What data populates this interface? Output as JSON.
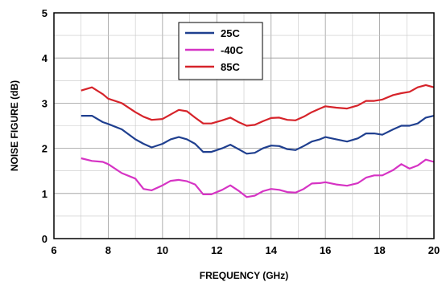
{
  "chart_data": {
    "type": "line",
    "title": "",
    "xlabel": "FREQUENCY (GHz)",
    "ylabel": "NOISE FIGURE (dB)",
    "xlim": [
      6,
      20
    ],
    "ylim": [
      0,
      5
    ],
    "x_ticks": [
      6,
      8,
      10,
      12,
      14,
      16,
      18,
      20
    ],
    "y_ticks": [
      0,
      1,
      2,
      3,
      4,
      5
    ],
    "x_tick_labels": [
      "6",
      "8",
      "10",
      "12",
      "14",
      "16",
      "18",
      "20"
    ],
    "y_tick_labels": [
      "0",
      "1",
      "2",
      "3",
      "4",
      "5"
    ],
    "grid": true,
    "legend_position": "top-center",
    "series": [
      {
        "name": "25C",
        "color": "#1f3f8f",
        "x": [
          7.0,
          7.4,
          7.8,
          8.0,
          8.5,
          9.0,
          9.3,
          9.6,
          10.0,
          10.3,
          10.6,
          10.9,
          11.2,
          11.5,
          11.8,
          12.2,
          12.5,
          12.8,
          13.1,
          13.4,
          13.7,
          14.0,
          14.3,
          14.6,
          14.9,
          15.2,
          15.5,
          15.8,
          16.0,
          16.4,
          16.8,
          17.2,
          17.5,
          17.8,
          18.1,
          18.5,
          18.8,
          19.1,
          19.4,
          19.7,
          20.0
        ],
        "y": [
          2.72,
          2.72,
          2.58,
          2.54,
          2.42,
          2.2,
          2.1,
          2.02,
          2.1,
          2.2,
          2.25,
          2.2,
          2.1,
          1.92,
          1.92,
          2.0,
          2.08,
          1.98,
          1.88,
          1.9,
          2.0,
          2.06,
          2.05,
          1.98,
          1.96,
          2.05,
          2.15,
          2.2,
          2.25,
          2.2,
          2.15,
          2.22,
          2.33,
          2.33,
          2.3,
          2.42,
          2.5,
          2.5,
          2.55,
          2.68,
          2.72
        ]
      },
      {
        "name": "-40C",
        "color": "#d633c4",
        "x": [
          7.0,
          7.4,
          7.8,
          8.0,
          8.5,
          9.0,
          9.3,
          9.6,
          10.0,
          10.3,
          10.6,
          10.9,
          11.2,
          11.5,
          11.8,
          12.2,
          12.5,
          12.8,
          13.1,
          13.4,
          13.7,
          14.0,
          14.3,
          14.6,
          14.9,
          15.2,
          15.5,
          15.8,
          16.0,
          16.4,
          16.8,
          17.2,
          17.5,
          17.8,
          18.1,
          18.5,
          18.8,
          19.1,
          19.4,
          19.7,
          20.0
        ],
        "y": [
          1.78,
          1.72,
          1.7,
          1.65,
          1.45,
          1.33,
          1.1,
          1.07,
          1.18,
          1.28,
          1.3,
          1.27,
          1.2,
          0.98,
          0.98,
          1.08,
          1.18,
          1.06,
          0.92,
          0.95,
          1.05,
          1.1,
          1.08,
          1.03,
          1.02,
          1.1,
          1.22,
          1.23,
          1.25,
          1.2,
          1.17,
          1.23,
          1.35,
          1.4,
          1.4,
          1.52,
          1.65,
          1.55,
          1.62,
          1.75,
          1.7
        ]
      },
      {
        "name": "85C",
        "color": "#d6232a",
        "x": [
          7.0,
          7.4,
          7.8,
          8.0,
          8.5,
          9.0,
          9.3,
          9.6,
          10.0,
          10.3,
          10.6,
          10.9,
          11.2,
          11.5,
          11.8,
          12.2,
          12.5,
          12.8,
          13.1,
          13.4,
          13.7,
          14.0,
          14.3,
          14.6,
          14.9,
          15.2,
          15.5,
          15.8,
          16.0,
          16.4,
          16.8,
          17.2,
          17.5,
          17.8,
          18.1,
          18.5,
          18.8,
          19.1,
          19.4,
          19.7,
          20.0
        ],
        "y": [
          3.28,
          3.35,
          3.2,
          3.1,
          3.0,
          2.8,
          2.7,
          2.63,
          2.65,
          2.75,
          2.85,
          2.82,
          2.68,
          2.55,
          2.55,
          2.62,
          2.68,
          2.58,
          2.5,
          2.52,
          2.6,
          2.67,
          2.68,
          2.63,
          2.62,
          2.7,
          2.8,
          2.88,
          2.93,
          2.9,
          2.88,
          2.95,
          3.05,
          3.05,
          3.08,
          3.18,
          3.22,
          3.25,
          3.35,
          3.4,
          3.35
        ]
      }
    ]
  }
}
